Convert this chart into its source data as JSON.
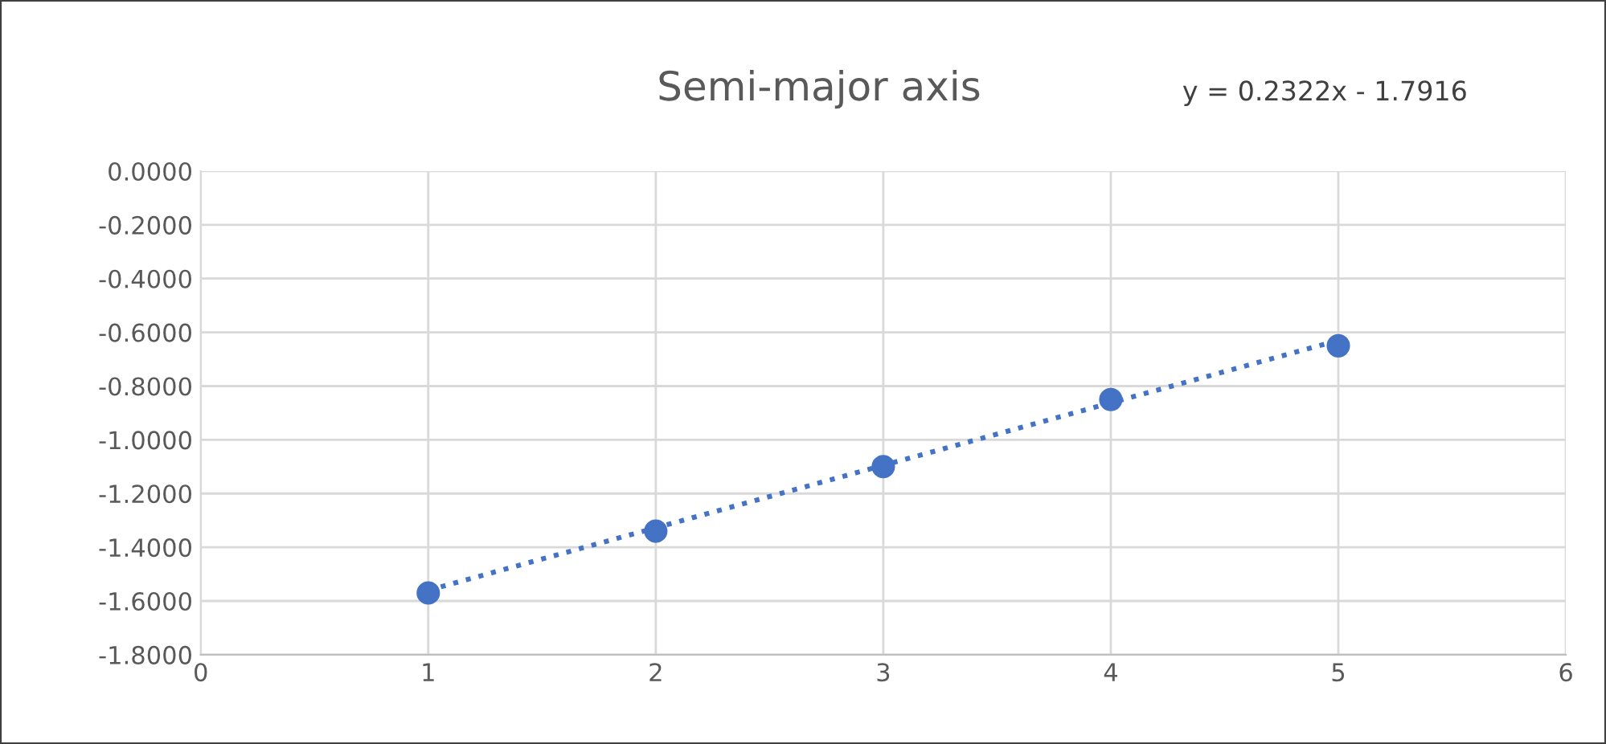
{
  "chart_data": {
    "type": "scatter",
    "title": "Semi-major axis",
    "annotations": [
      "y = 0.2322x - 1.7916"
    ],
    "series": [
      {
        "color": "#4472c4",
        "marker": "circle",
        "x": [
          1,
          2,
          3,
          4,
          5
        ],
        "values": [
          -1.57,
          -1.34,
          -1.1,
          -0.85,
          -0.65
        ]
      },
      {
        "type": "line",
        "color": "#4472c4",
        "marker": "none",
        "line_style": "dotted",
        "x": [
          1,
          5
        ],
        "values": [
          -1.56,
          -0.63
        ]
      }
    ],
    "xlim": [
      0,
      6
    ],
    "xticks": [
      0,
      1,
      2,
      3,
      4,
      5,
      6
    ],
    "ylim": [
      -1.8,
      0
    ],
    "yticks": [
      {
        "value": 0,
        "label": "0.0000"
      },
      {
        "value": -0.2,
        "label": "-0.2000"
      },
      {
        "value": -0.4,
        "label": "-0.4000"
      },
      {
        "value": -0.6,
        "label": "-0.6000"
      },
      {
        "value": -0.8,
        "label": "-0.8000"
      },
      {
        "value": -1.0,
        "label": "-1.0000"
      },
      {
        "value": -1.2,
        "label": "-1.2000"
      },
      {
        "value": -1.4,
        "label": "-1.4000"
      },
      {
        "value": -1.6,
        "label": "-1.6000"
      },
      {
        "value": -1.8,
        "label": "-1.8000"
      }
    ],
    "grid": true
  }
}
